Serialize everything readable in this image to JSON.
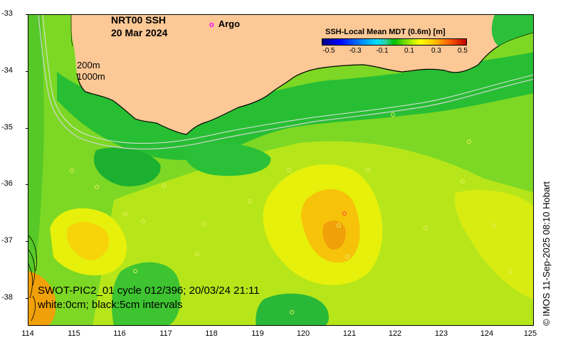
{
  "title": {
    "line1": "NRT00 SSH",
    "line2": "20 Mar 2024"
  },
  "legend": {
    "argo_marker": "o",
    "argo_label": "Argo"
  },
  "colorbar": {
    "title": "SSH-Local Mean MDT (0.6m) [m]",
    "ticks": [
      "-0.5",
      "-0.3",
      "-0.1",
      "0.1",
      "0.3",
      "0.5"
    ],
    "colors": [
      "#000086",
      "#0000ff",
      "#0080ff",
      "#00e0ff",
      "#00c000",
      "#80e000",
      "#ffff00",
      "#ffc000",
      "#ff6000",
      "#c00000"
    ]
  },
  "isobaths": {
    "label_200": "200m",
    "label_1000": "1000m"
  },
  "swot": {
    "line1": "SWOT-PIC2_01 cycle 012/396; 20/03/24 21:11",
    "line2": "white:0cm; black:5cm intervals"
  },
  "axes": {
    "y_ticks": [
      "-33",
      "-34",
      "-35",
      "-36",
      "-37",
      "-38"
    ],
    "x_ticks": [
      "114",
      "115",
      "116",
      "117",
      "118",
      "119",
      "120",
      "121",
      "122",
      "123",
      "124",
      "125"
    ],
    "lon_range": [
      114,
      125
    ],
    "lat_range": [
      -38.5,
      -33
    ]
  },
  "credit": "© IMOS 11-Sep-2025 08:10 Hobart",
  "colors": {
    "land": "#fbc896",
    "sea_base": "#7cd824",
    "green_dark": "#1cb030",
    "yellow": "#e6f00a",
    "orange": "#f7c20a",
    "argo": "#ff00ff"
  }
}
